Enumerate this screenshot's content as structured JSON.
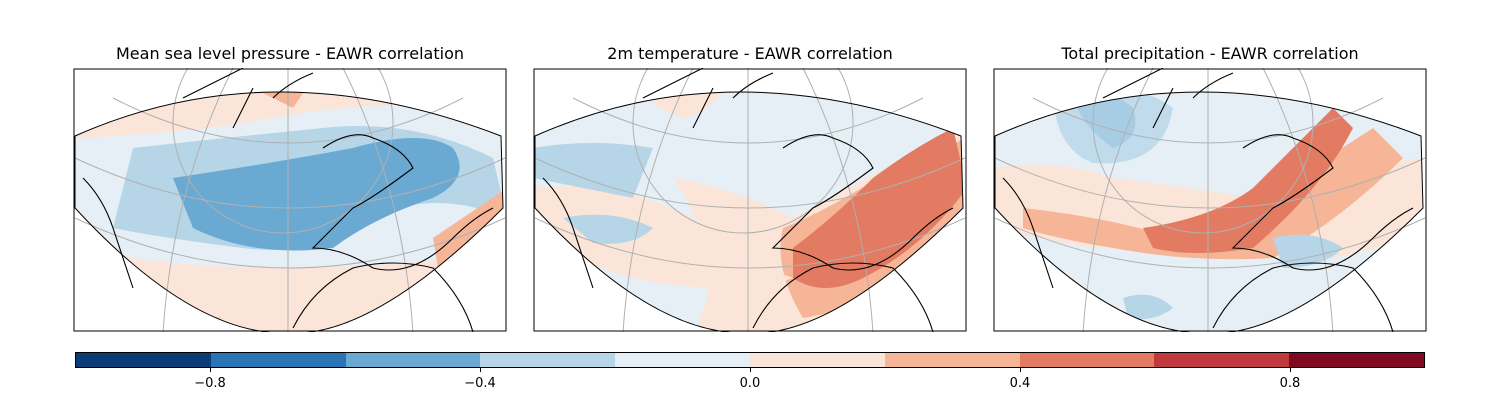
{
  "panels": [
    {
      "title": "Mean sea level pressure - EAWR correlation"
    },
    {
      "title": "2m temperature - EAWR correlation"
    },
    {
      "title": "Total precipitation - EAWR correlation"
    }
  ],
  "colorbar": {
    "colormap": "RdBu_r",
    "range": [
      -1.0,
      1.0
    ],
    "levels": [
      -1.0,
      -0.8,
      -0.6,
      -0.4,
      -0.2,
      0.0,
      0.2,
      0.4,
      0.6,
      0.8,
      1.0
    ],
    "colors": [
      "#0b3c77",
      "#2b74b6",
      "#6aa9d2",
      "#b6d6e8",
      "#e6eff5",
      "#fbe5d9",
      "#f6b597",
      "#e27b62",
      "#c13a3e",
      "#7f0a21"
    ],
    "ticks": [
      {
        "value": -0.8,
        "label": "−0.8"
      },
      {
        "value": -0.4,
        "label": "−0.4"
      },
      {
        "value": 0.0,
        "label": "0.0"
      },
      {
        "value": 0.4,
        "label": "0.4"
      },
      {
        "value": 0.8,
        "label": "0.8"
      }
    ]
  }
}
